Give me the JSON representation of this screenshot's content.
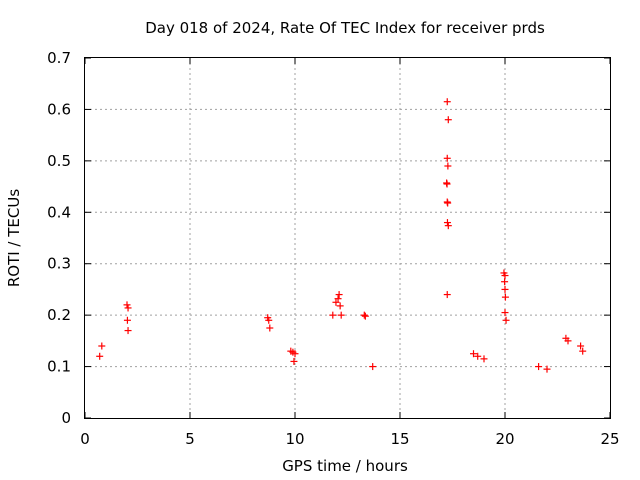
{
  "chart_data": {
    "type": "scatter",
    "title": "Day 018 of 2024, Rate Of TEC Index for receiver prds",
    "xlabel": "GPS time / hours",
    "ylabel": "ROTI / TECUs",
    "xlim": [
      0,
      25
    ],
    "ylim": [
      0,
      0.7
    ],
    "x_ticks": [
      "0",
      "5",
      "10",
      "15",
      "20",
      "25"
    ],
    "y_ticks": [
      "0",
      "0.1",
      "0.2",
      "0.3",
      "0.4",
      "0.5",
      "0.6",
      "0.7"
    ],
    "grid": true,
    "marker": "plus",
    "series": [
      {
        "color": "#ff0000",
        "points": [
          [
            17.25,
            0.615
          ],
          [
            17.3,
            0.58
          ],
          [
            17.25,
            0.505
          ],
          [
            17.28,
            0.49
          ],
          [
            17.22,
            0.457
          ],
          [
            17.24,
            0.455
          ],
          [
            17.25,
            0.42
          ],
          [
            17.27,
            0.418
          ],
          [
            17.26,
            0.38
          ],
          [
            17.3,
            0.374
          ],
          [
            17.25,
            0.24
          ],
          [
            19.95,
            0.282
          ],
          [
            20.0,
            0.277
          ],
          [
            19.98,
            0.265
          ],
          [
            20.0,
            0.25
          ],
          [
            20.02,
            0.235
          ],
          [
            20.0,
            0.205
          ],
          [
            20.05,
            0.19
          ],
          [
            2.0,
            0.22
          ],
          [
            2.05,
            0.214
          ],
          [
            2.02,
            0.19
          ],
          [
            2.05,
            0.17
          ],
          [
            12.1,
            0.24
          ],
          [
            12.05,
            0.232
          ],
          [
            11.95,
            0.225
          ],
          [
            12.15,
            0.218
          ],
          [
            12.2,
            0.2
          ],
          [
            11.8,
            0.2
          ],
          [
            13.3,
            0.2
          ],
          [
            13.35,
            0.198
          ],
          [
            8.7,
            0.195
          ],
          [
            8.75,
            0.19
          ],
          [
            8.8,
            0.175
          ],
          [
            9.8,
            0.13
          ],
          [
            9.9,
            0.128
          ],
          [
            10.0,
            0.125
          ],
          [
            9.95,
            0.11
          ],
          [
            22.9,
            0.155
          ],
          [
            23.0,
            0.15
          ],
          [
            23.6,
            0.14
          ],
          [
            23.7,
            0.13
          ],
          [
            0.8,
            0.14
          ],
          [
            0.7,
            0.12
          ],
          [
            18.5,
            0.125
          ],
          [
            18.7,
            0.12
          ],
          [
            19.0,
            0.115
          ],
          [
            21.6,
            0.1
          ],
          [
            22.0,
            0.095
          ],
          [
            13.7,
            0.1
          ]
        ]
      }
    ]
  }
}
